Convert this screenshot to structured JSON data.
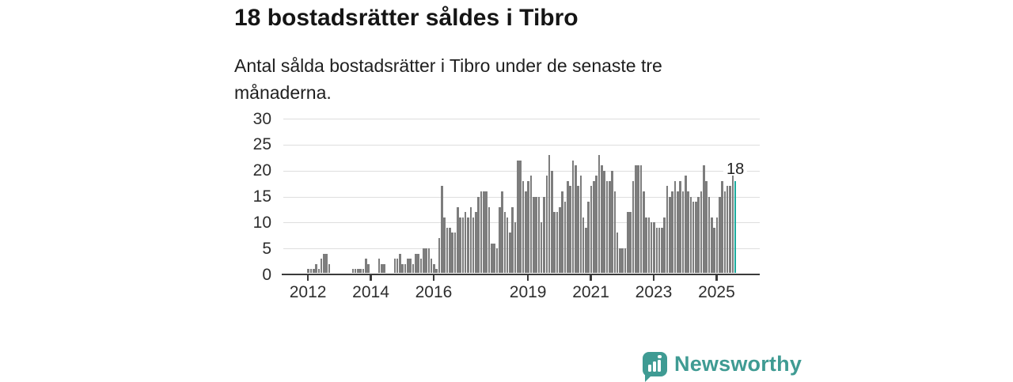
{
  "header": {
    "title": "18 bostadsrätter såldes i Tibro",
    "subtitle": "Antal sålda bostadsrätter i Tibro under de senaste tre månaderna."
  },
  "annotation": {
    "label": "18"
  },
  "footer": {
    "brand": "Newsworthy",
    "icon": "bar-chart-speech-bubble-icon"
  },
  "colors": {
    "bar": "#7d7d7d",
    "highlight": "#1bab9e",
    "brand": "#3f9b93",
    "grid": "#dedede",
    "axis": "#3b3b3b"
  },
  "chart_data": {
    "type": "bar",
    "title": "18 bostadsrätter såldes i Tibro",
    "subtitle": "Antal sålda bostadsrätter i Tibro under de senaste tre månaderna.",
    "period": "monthly",
    "start_month": "2011-04",
    "end_month": "2025-08",
    "ylim": [
      0,
      30
    ],
    "y_ticks": [
      0,
      5,
      10,
      15,
      20,
      25,
      30
    ],
    "grid": true,
    "highlight_last_bar": true,
    "last_bar_value": 18,
    "x_ticks": [
      {
        "label": "2012",
        "month_index": 9
      },
      {
        "label": "2014",
        "month_index": 33
      },
      {
        "label": "2016",
        "month_index": 57
      },
      {
        "label": "2019",
        "month_index": 93
      },
      {
        "label": "2021",
        "month_index": 117
      },
      {
        "label": "2023",
        "month_index": 141
      },
      {
        "label": "2025",
        "month_index": 165
      }
    ],
    "values": [
      0,
      0,
      0,
      0,
      0,
      0,
      0,
      0,
      0,
      1,
      1,
      1,
      2,
      1,
      3,
      4,
      4,
      2,
      0,
      0,
      0,
      0,
      0,
      0,
      0,
      0,
      1,
      1,
      1,
      1,
      1,
      3,
      2,
      0,
      0,
      0,
      3,
      2,
      2,
      0,
      0,
      0,
      3,
      3,
      4,
      2,
      2,
      3,
      3,
      2,
      4,
      4,
      3,
      5,
      5,
      5,
      3,
      2,
      1,
      7,
      17,
      11,
      9,
      9,
      8,
      8,
      13,
      11,
      11,
      12,
      11,
      13,
      11,
      12,
      15,
      16,
      16,
      16,
      13,
      6,
      6,
      5,
      13,
      16,
      12,
      11,
      8,
      13,
      10,
      22,
      22,
      18,
      16,
      18,
      19,
      15,
      15,
      15,
      10,
      15,
      19,
      23,
      20,
      12,
      12,
      13,
      16,
      14,
      18,
      17,
      22,
      21,
      17,
      19,
      11,
      9,
      14,
      17,
      18,
      19,
      23,
      21,
      20,
      18,
      18,
      20,
      16,
      8,
      5,
      5,
      5,
      12,
      12,
      18,
      21,
      21,
      21,
      16,
      11,
      11,
      10,
      10,
      9,
      9,
      9,
      11,
      17,
      15,
      16,
      18,
      16,
      18,
      16,
      19,
      16,
      15,
      14,
      14,
      15,
      16,
      21,
      18,
      15,
      11,
      9,
      11,
      15,
      18,
      16,
      17,
      17,
      19,
      18
    ]
  }
}
